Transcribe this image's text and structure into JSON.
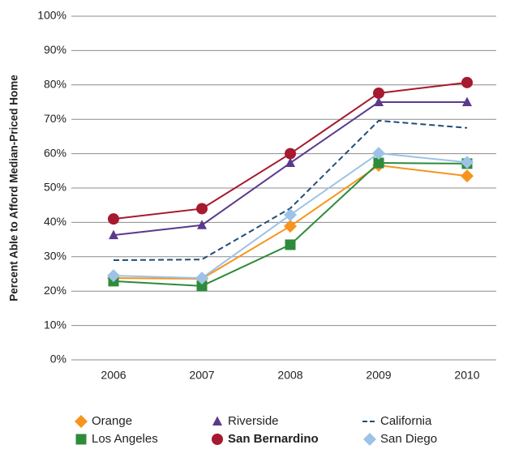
{
  "chart_data": {
    "type": "line",
    "y_label": "Percent Able to Afford Median-Priced Home",
    "categories": [
      "2006",
      "2007",
      "2008",
      "2009",
      "2010"
    ],
    "series": [
      {
        "name": "Orange",
        "color": "#f7941d",
        "marker": "diamond",
        "values": [
          23.8,
          23.6,
          38.9,
          56.6,
          53.5
        ]
      },
      {
        "name": "Riverside",
        "color": "#5b3a8c",
        "marker": "triangle",
        "values": [
          36.3,
          39.2,
          57.3,
          75,
          75
        ]
      },
      {
        "name": "California",
        "color": "#1f4e79",
        "marker": "none",
        "dash": true,
        "values": [
          29,
          29.2,
          44.1,
          69.6,
          67.5
        ]
      },
      {
        "name": "Los Angeles",
        "color": "#2e8b3a",
        "marker": "square",
        "values": [
          22.9,
          21.5,
          33.5,
          57.3,
          57.1
        ]
      },
      {
        "name": "San Bernardino",
        "color": "#a6192e",
        "marker": "circle",
        "bold": true,
        "values": [
          41,
          44,
          60,
          77.6,
          80.7
        ]
      },
      {
        "name": "San Diego",
        "color": "#9cc3e6",
        "marker": "diamond",
        "values": [
          24.5,
          23.8,
          42.2,
          60.1,
          57.5
        ]
      }
    ],
    "ylim": [
      0,
      100
    ],
    "yticks": [
      {
        "value": 0,
        "label": "0%"
      },
      {
        "value": 10,
        "label": "10%"
      },
      {
        "value": 20,
        "label": "20%"
      },
      {
        "value": 30,
        "label": "30%"
      },
      {
        "value": 40,
        "label": "40%"
      },
      {
        "value": 50,
        "label": "50%"
      },
      {
        "value": 60,
        "label": "60%"
      },
      {
        "value": 70,
        "label": "70%"
      },
      {
        "value": 80,
        "label": "80%"
      },
      {
        "value": 90,
        "label": "90%"
      },
      {
        "value": 100,
        "label": "100%"
      }
    ],
    "grid": true,
    "legend": "bottom"
  }
}
